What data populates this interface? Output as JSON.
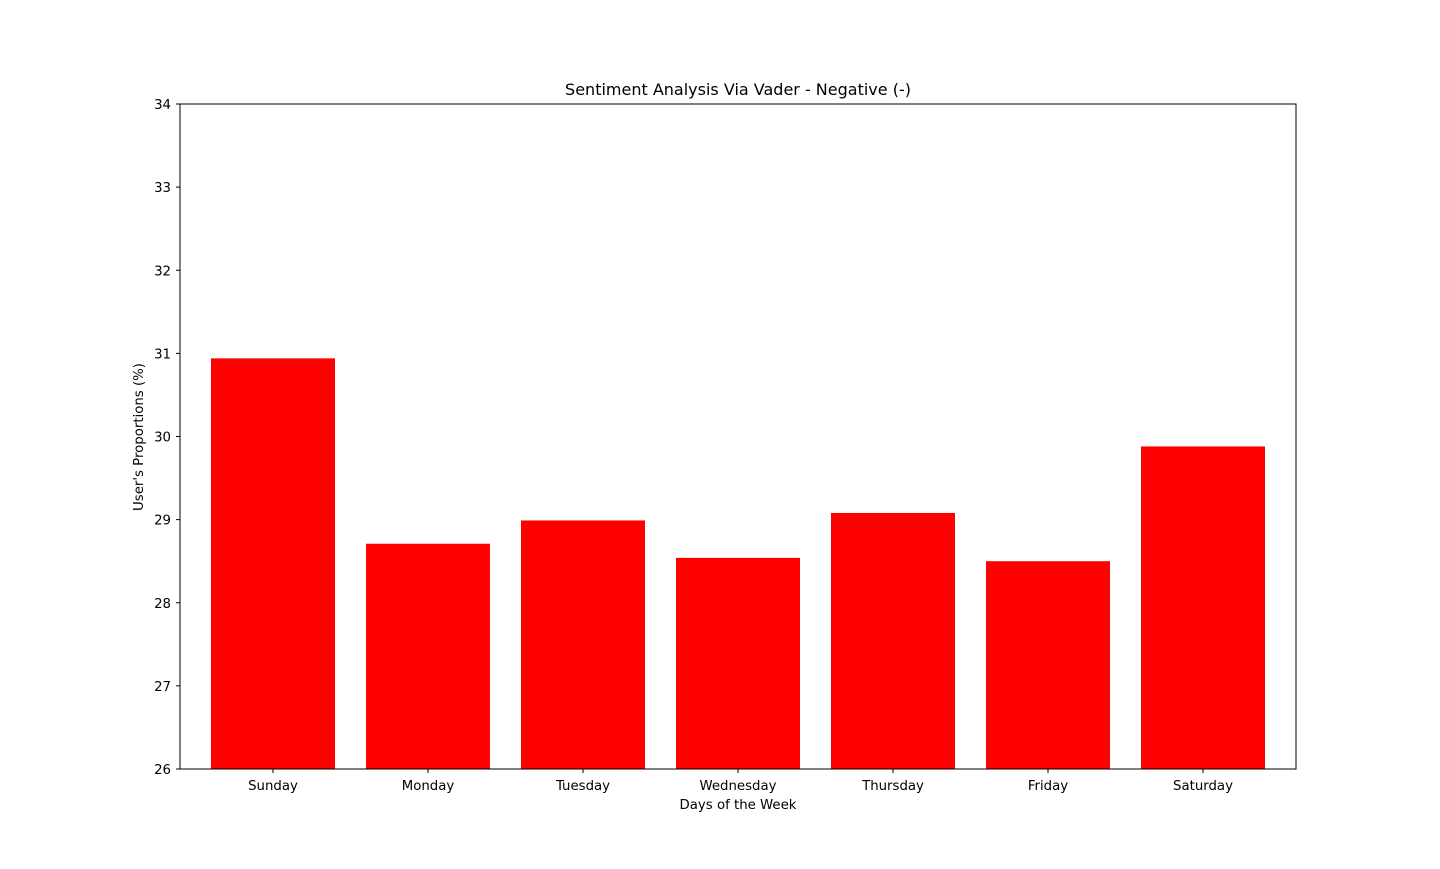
{
  "chart_data": {
    "type": "bar",
    "title": "Sentiment Analysis Via Vader - Negative (-)",
    "xlabel": "Days of the Week",
    "ylabel": "User's Proportions (%)",
    "categories": [
      "Sunday",
      "Monday",
      "Tuesday",
      "Wednesday",
      "Thursday",
      "Friday",
      "Saturday"
    ],
    "values": [
      30.94,
      28.71,
      28.99,
      28.54,
      29.08,
      28.5,
      29.88
    ],
    "ylim": [
      26,
      34
    ],
    "yticks": [
      "26",
      "27",
      "28",
      "29",
      "30",
      "31",
      "32",
      "33",
      "34"
    ],
    "bar_color": "#ff0000",
    "grid": false,
    "legend": "none"
  }
}
